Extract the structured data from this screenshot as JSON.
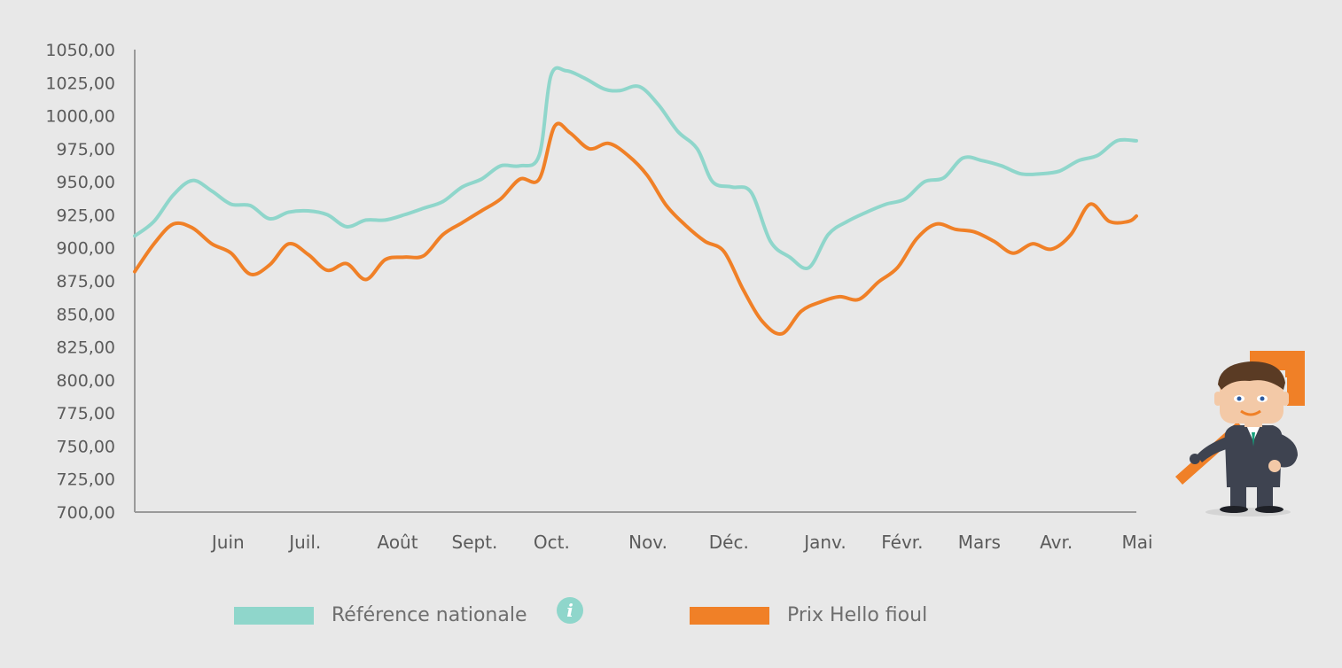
{
  "chart_data": {
    "type": "line",
    "y_ticks": [
      "1050,00",
      "1025,00",
      "1000,00",
      "975,00",
      "950,00",
      "925,00",
      "900,00",
      "875,00",
      "850,00",
      "825,00",
      "800,00",
      "775,00",
      "750,00",
      "725,00",
      "700,00"
    ],
    "ylim": [
      700,
      1050
    ],
    "x_ticks": [
      "Juin",
      "Juil.",
      "Août",
      "Sept.",
      "Oct.",
      "Nov.",
      "Déc.",
      "Janv.",
      "Févr.",
      "Mars",
      "Avr.",
      "Mai"
    ],
    "x_tick_positions_months": [
      1.2,
      2.2,
      3.4,
      4.4,
      5.4,
      6.65,
      7.7,
      8.95,
      9.95,
      10.95,
      11.95,
      13.0
    ],
    "xlim_months": [
      0,
      13.0
    ],
    "series": [
      {
        "name": "Référence nationale",
        "color": "#8fd6cb",
        "points": [
          [
            0,
            909
          ],
          [
            0.25,
            920
          ],
          [
            0.5,
            940
          ],
          [
            0.75,
            951
          ],
          [
            1.0,
            943
          ],
          [
            1.25,
            933
          ],
          [
            1.5,
            932
          ],
          [
            1.75,
            922
          ],
          [
            2.0,
            927
          ],
          [
            2.25,
            928
          ],
          [
            2.5,
            925
          ],
          [
            2.75,
            916
          ],
          [
            3.0,
            921
          ],
          [
            3.25,
            921
          ],
          [
            3.5,
            925
          ],
          [
            3.75,
            930
          ],
          [
            4.0,
            935
          ],
          [
            4.25,
            946
          ],
          [
            4.5,
            952
          ],
          [
            4.75,
            962
          ],
          [
            5.0,
            962
          ],
          [
            5.25,
            970
          ],
          [
            5.4,
            1030
          ],
          [
            5.6,
            1034
          ],
          [
            5.85,
            1028
          ],
          [
            6.1,
            1020
          ],
          [
            6.3,
            1019
          ],
          [
            6.55,
            1022
          ],
          [
            6.8,
            1008
          ],
          [
            7.05,
            988
          ],
          [
            7.3,
            975
          ],
          [
            7.5,
            950
          ],
          [
            7.75,
            946
          ],
          [
            8.0,
            942
          ],
          [
            8.25,
            905
          ],
          [
            8.5,
            893
          ],
          [
            8.75,
            885
          ],
          [
            9.0,
            910
          ],
          [
            9.25,
            920
          ],
          [
            9.5,
            927
          ],
          [
            9.75,
            933
          ],
          [
            10.0,
            937
          ],
          [
            10.25,
            950
          ],
          [
            10.5,
            953
          ],
          [
            10.75,
            968
          ],
          [
            11.0,
            966
          ],
          [
            11.25,
            962
          ],
          [
            11.5,
            956
          ],
          [
            11.75,
            956
          ],
          [
            12.0,
            958
          ],
          [
            12.25,
            966
          ],
          [
            12.5,
            970
          ],
          [
            12.75,
            981
          ],
          [
            13.0,
            981
          ]
        ]
      },
      {
        "name": "Prix Hello fioul",
        "color": "#f08027",
        "points": [
          [
            0,
            882
          ],
          [
            0.25,
            903
          ],
          [
            0.5,
            918
          ],
          [
            0.75,
            915
          ],
          [
            1.0,
            903
          ],
          [
            1.25,
            896
          ],
          [
            1.5,
            880
          ],
          [
            1.75,
            887
          ],
          [
            2.0,
            903
          ],
          [
            2.25,
            895
          ],
          [
            2.5,
            883
          ],
          [
            2.75,
            888
          ],
          [
            3.0,
            876
          ],
          [
            3.25,
            891
          ],
          [
            3.5,
            893
          ],
          [
            3.75,
            894
          ],
          [
            4.0,
            910
          ],
          [
            4.25,
            919
          ],
          [
            4.5,
            928
          ],
          [
            4.75,
            937
          ],
          [
            5.0,
            952
          ],
          [
            5.25,
            952
          ],
          [
            5.45,
            992
          ],
          [
            5.65,
            987
          ],
          [
            5.9,
            975
          ],
          [
            6.15,
            979
          ],
          [
            6.4,
            970
          ],
          [
            6.65,
            955
          ],
          [
            6.9,
            932
          ],
          [
            7.15,
            917
          ],
          [
            7.4,
            905
          ],
          [
            7.65,
            897
          ],
          [
            7.9,
            868
          ],
          [
            8.15,
            844
          ],
          [
            8.4,
            835
          ],
          [
            8.65,
            852
          ],
          [
            8.9,
            859
          ],
          [
            9.15,
            863
          ],
          [
            9.4,
            861
          ],
          [
            9.65,
            874
          ],
          [
            9.9,
            885
          ],
          [
            10.15,
            907
          ],
          [
            10.4,
            918
          ],
          [
            10.65,
            914
          ],
          [
            10.9,
            912
          ],
          [
            11.15,
            905
          ],
          [
            11.4,
            896
          ],
          [
            11.65,
            903
          ],
          [
            11.9,
            899
          ],
          [
            12.15,
            910
          ],
          [
            12.4,
            933
          ],
          [
            12.65,
            920
          ],
          [
            12.9,
            920
          ],
          [
            13.0,
            924
          ]
        ]
      }
    ],
    "grid": false,
    "legend_position": "bottom"
  },
  "legend": {
    "items": [
      {
        "label": "Référence nationale",
        "color": "#8fd6cb"
      },
      {
        "label": "Prix Hello fioul",
        "color": "#f08027"
      }
    ],
    "info_icon": "i"
  }
}
